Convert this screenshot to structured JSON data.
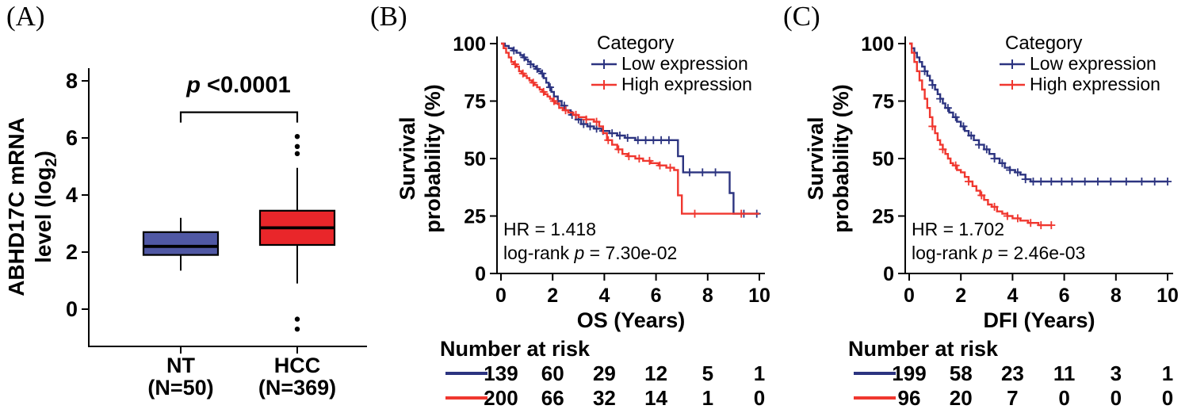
{
  "figure": {
    "panel_a_letter": "(A)",
    "panel_b_letter": "(B)",
    "panel_c_letter": "(C)"
  },
  "colors": {
    "box_blue": "#5058a4",
    "box_red": "#e9262a",
    "km_blue": "#2c3480",
    "km_red": "#f0372f",
    "axis_black": "#000000"
  },
  "chart_data": [
    {
      "type": "box",
      "panel": "A",
      "ylabel_line1": "ABHD17C mRNA",
      "ylabel_line2_parts": {
        "prefix": "level (log",
        "sub": "2",
        "suffix": ")"
      },
      "y_ticks": [
        0,
        2,
        4,
        6,
        8
      ],
      "ylim": [
        -1.3,
        8.4
      ],
      "groups": [
        {
          "label": "NT",
          "sublabel": "(N=50)",
          "color_key": "box_blue",
          "whisker_low": 1.35,
          "q1": 1.9,
          "median": 2.2,
          "q3": 2.7,
          "whisker_high": 3.2,
          "outliers": []
        },
        {
          "label": "HCC",
          "sublabel": "(N=369)",
          "color_key": "box_red",
          "whisker_low": 0.9,
          "q1": 2.25,
          "median": 2.85,
          "q3": 3.45,
          "whisker_high": 4.95,
          "outliers": [
            6.05,
            5.7,
            5.45,
            -0.35,
            -0.7
          ]
        }
      ],
      "p_annotation": {
        "italic": "p",
        "text": " <0.0001"
      }
    },
    {
      "type": "line",
      "subtype": "kaplan-meier",
      "panel": "B",
      "ylabel_lines": [
        "Survival",
        "probability (%)"
      ],
      "xlabel": "OS (Years)",
      "x_ticks": [
        0,
        2,
        4,
        6,
        8,
        10
      ],
      "y_ticks": [
        0,
        25,
        50,
        75,
        100
      ],
      "xlim": [
        0,
        10
      ],
      "ylim": [
        0,
        100
      ],
      "legend": {
        "title": "Category",
        "entries": [
          {
            "label": "Low expression",
            "color_key": "km_blue"
          },
          {
            "label": "High expression",
            "color_key": "km_red"
          }
        ]
      },
      "stats": {
        "hr": "HR = 1.418",
        "logrank_prefix": "log-rank ",
        "logrank_p": "p",
        "logrank_suffix": " = 7.30e-02"
      },
      "series": [
        {
          "name": "Low expression",
          "color_key": "km_blue",
          "points": [
            [
              0,
              100
            ],
            [
              0.15,
              99
            ],
            [
              0.3,
              98
            ],
            [
              0.45,
              97
            ],
            [
              0.6,
              96
            ],
            [
              0.75,
              95
            ],
            [
              0.85,
              94
            ],
            [
              0.95,
              93
            ],
            [
              1.05,
              92
            ],
            [
              1.15,
              91
            ],
            [
              1.25,
              90
            ],
            [
              1.35,
              89
            ],
            [
              1.45,
              88
            ],
            [
              1.55,
              87
            ],
            [
              1.65,
              85
            ],
            [
              1.75,
              83
            ],
            [
              1.85,
              81
            ],
            [
              1.95,
              79
            ],
            [
              2.05,
              77
            ],
            [
              2.2,
              75
            ],
            [
              2.35,
              73
            ],
            [
              2.5,
              71
            ],
            [
              2.7,
              69
            ],
            [
              2.9,
              67
            ],
            [
              3.1,
              65
            ],
            [
              3.35,
              64
            ],
            [
              3.6,
              63
            ],
            [
              3.9,
              62
            ],
            [
              4.2,
              61
            ],
            [
              4.5,
              60
            ],
            [
              4.8,
              59
            ],
            [
              5.2,
              58
            ],
            [
              6.85,
              51
            ],
            [
              7.05,
              44
            ],
            [
              8.85,
              35
            ],
            [
              9.0,
              26
            ],
            [
              10,
              26
            ]
          ],
          "censor_times": [
            0.5,
            0.9,
            1.15,
            1.4,
            1.6,
            1.9,
            2.2,
            2.45,
            2.75,
            3.0,
            3.2,
            3.45,
            3.7,
            3.95,
            4.3,
            4.6,
            4.9,
            5.3,
            5.6,
            5.9,
            6.2,
            6.5,
            7.3,
            7.8,
            8.3,
            9.4,
            9.9
          ]
        },
        {
          "name": "High expression",
          "color_key": "km_red",
          "points": [
            [
              0,
              100
            ],
            [
              0.1,
              98
            ],
            [
              0.2,
              96
            ],
            [
              0.3,
              94
            ],
            [
              0.4,
              92
            ],
            [
              0.5,
              91
            ],
            [
              0.6,
              90
            ],
            [
              0.7,
              88
            ],
            [
              0.8,
              87
            ],
            [
              0.9,
              86
            ],
            [
              1.0,
              85
            ],
            [
              1.1,
              84
            ],
            [
              1.2,
              83
            ],
            [
              1.3,
              82
            ],
            [
              1.4,
              81
            ],
            [
              1.5,
              80
            ],
            [
              1.6,
              79
            ],
            [
              1.7,
              78
            ],
            [
              1.8,
              77
            ],
            [
              1.9,
              76
            ],
            [
              2.0,
              75
            ],
            [
              2.1,
              74
            ],
            [
              2.25,
              72
            ],
            [
              2.4,
              71
            ],
            [
              2.6,
              70
            ],
            [
              2.8,
              69
            ],
            [
              3.0,
              68
            ],
            [
              3.3,
              67
            ],
            [
              3.6,
              66
            ],
            [
              3.8,
              64
            ],
            [
              3.95,
              61
            ],
            [
              4.1,
              58
            ],
            [
              4.3,
              56
            ],
            [
              4.5,
              54
            ],
            [
              4.7,
              52
            ],
            [
              4.9,
              51
            ],
            [
              5.2,
              50
            ],
            [
              5.5,
              49
            ],
            [
              5.8,
              48
            ],
            [
              6.1,
              47
            ],
            [
              6.4,
              46
            ],
            [
              6.7,
              45
            ],
            [
              6.85,
              34
            ],
            [
              7.0,
              26
            ],
            [
              10,
              26
            ]
          ],
          "censor_times": [
            0.55,
            0.85,
            1.25,
            1.65,
            2.05,
            2.5,
            2.9,
            3.3,
            3.7,
            4.15,
            4.55,
            4.95,
            5.35,
            5.75,
            6.15,
            6.55,
            7.5,
            9.3
          ]
        }
      ],
      "risk_table": {
        "header": "Number at risk",
        "times": [
          0,
          2,
          4,
          6,
          8,
          10
        ],
        "rows": [
          {
            "color_key": "km_blue",
            "counts": [
              139,
              60,
              29,
              12,
              5,
              1
            ]
          },
          {
            "color_key": "km_red",
            "counts": [
              200,
              66,
              32,
              14,
              1,
              0
            ]
          }
        ]
      }
    },
    {
      "type": "line",
      "subtype": "kaplan-meier",
      "panel": "C",
      "ylabel_lines": [
        "Survival",
        "probability (%)"
      ],
      "xlabel": "DFI (Years)",
      "x_ticks": [
        0,
        2,
        4,
        6,
        8,
        10
      ],
      "y_ticks": [
        0,
        25,
        50,
        75,
        100
      ],
      "xlim": [
        0,
        10
      ],
      "ylim": [
        0,
        100
      ],
      "legend": {
        "title": "Category",
        "entries": [
          {
            "label": "Low expression",
            "color_key": "km_blue"
          },
          {
            "label": "High expression",
            "color_key": "km_red"
          }
        ]
      },
      "stats": {
        "hr": "HR = 1.702",
        "logrank_prefix": "log-rank ",
        "logrank_p": "p",
        "logrank_suffix": " = 2.46e-03"
      },
      "series": [
        {
          "name": "Low expression",
          "color_key": "km_blue",
          "points": [
            [
              0,
              100
            ],
            [
              0.1,
              98
            ],
            [
              0.2,
              96
            ],
            [
              0.3,
              94
            ],
            [
              0.4,
              92
            ],
            [
              0.5,
              90
            ],
            [
              0.6,
              88
            ],
            [
              0.7,
              86
            ],
            [
              0.8,
              84
            ],
            [
              0.9,
              82
            ],
            [
              1.0,
              80
            ],
            [
              1.1,
              78
            ],
            [
              1.2,
              76
            ],
            [
              1.3,
              74
            ],
            [
              1.4,
              72
            ],
            [
              1.55,
              70
            ],
            [
              1.7,
              68
            ],
            [
              1.85,
              66
            ],
            [
              2.0,
              64
            ],
            [
              2.15,
              62
            ],
            [
              2.3,
              60
            ],
            [
              2.5,
              58
            ],
            [
              2.7,
              56
            ],
            [
              2.9,
              54
            ],
            [
              3.1,
              52
            ],
            [
              3.3,
              50
            ],
            [
              3.5,
              48
            ],
            [
              3.7,
              46
            ],
            [
              3.9,
              45
            ],
            [
              4.1,
              44
            ],
            [
              4.3,
              43
            ],
            [
              4.5,
              41
            ],
            [
              4.7,
              40
            ],
            [
              10,
              40
            ]
          ],
          "censor_times": [
            0.6,
            0.9,
            1.2,
            1.5,
            1.8,
            2.1,
            2.4,
            2.7,
            3.0,
            3.3,
            3.6,
            3.9,
            4.2,
            4.5,
            4.8,
            5.1,
            5.5,
            5.9,
            6.3,
            6.8,
            7.3,
            7.8,
            8.4,
            9.0,
            9.5,
            10
          ]
        },
        {
          "name": "High expression",
          "color_key": "km_red",
          "points": [
            [
              0,
              100
            ],
            [
              0.1,
              96
            ],
            [
              0.2,
              92
            ],
            [
              0.3,
              88
            ],
            [
              0.4,
              84
            ],
            [
              0.5,
              80
            ],
            [
              0.6,
              76
            ],
            [
              0.7,
              72
            ],
            [
              0.8,
              68
            ],
            [
              0.9,
              64
            ],
            [
              1.0,
              61
            ],
            [
              1.1,
              58
            ],
            [
              1.2,
              56
            ],
            [
              1.3,
              54
            ],
            [
              1.4,
              52
            ],
            [
              1.5,
              50
            ],
            [
              1.6,
              48
            ],
            [
              1.7,
              47
            ],
            [
              1.85,
              45
            ],
            [
              2.0,
              44
            ],
            [
              2.15,
              42
            ],
            [
              2.3,
              40
            ],
            [
              2.45,
              38
            ],
            [
              2.6,
              36
            ],
            [
              2.75,
              34
            ],
            [
              2.9,
              32
            ],
            [
              3.05,
              30
            ],
            [
              3.2,
              29
            ],
            [
              3.4,
              27
            ],
            [
              3.6,
              26
            ],
            [
              3.8,
              25
            ],
            [
              4.0,
              24
            ],
            [
              4.3,
              23
            ],
            [
              4.6,
              22
            ],
            [
              5.0,
              21
            ],
            [
              5.5,
              21
            ]
          ],
          "censor_times": [
            0.9,
            1.3,
            1.8,
            2.3,
            2.8,
            3.3,
            3.8,
            4.2,
            4.7,
            5.1,
            5.5
          ]
        }
      ],
      "risk_table": {
        "header": "Number at risk",
        "times": [
          0,
          2,
          4,
          6,
          8,
          10
        ],
        "rows": [
          {
            "color_key": "km_blue",
            "counts": [
              199,
              58,
              23,
              11,
              3,
              1
            ]
          },
          {
            "color_key": "km_red",
            "counts": [
              96,
              20,
              7,
              0,
              0,
              0
            ]
          }
        ]
      }
    }
  ]
}
